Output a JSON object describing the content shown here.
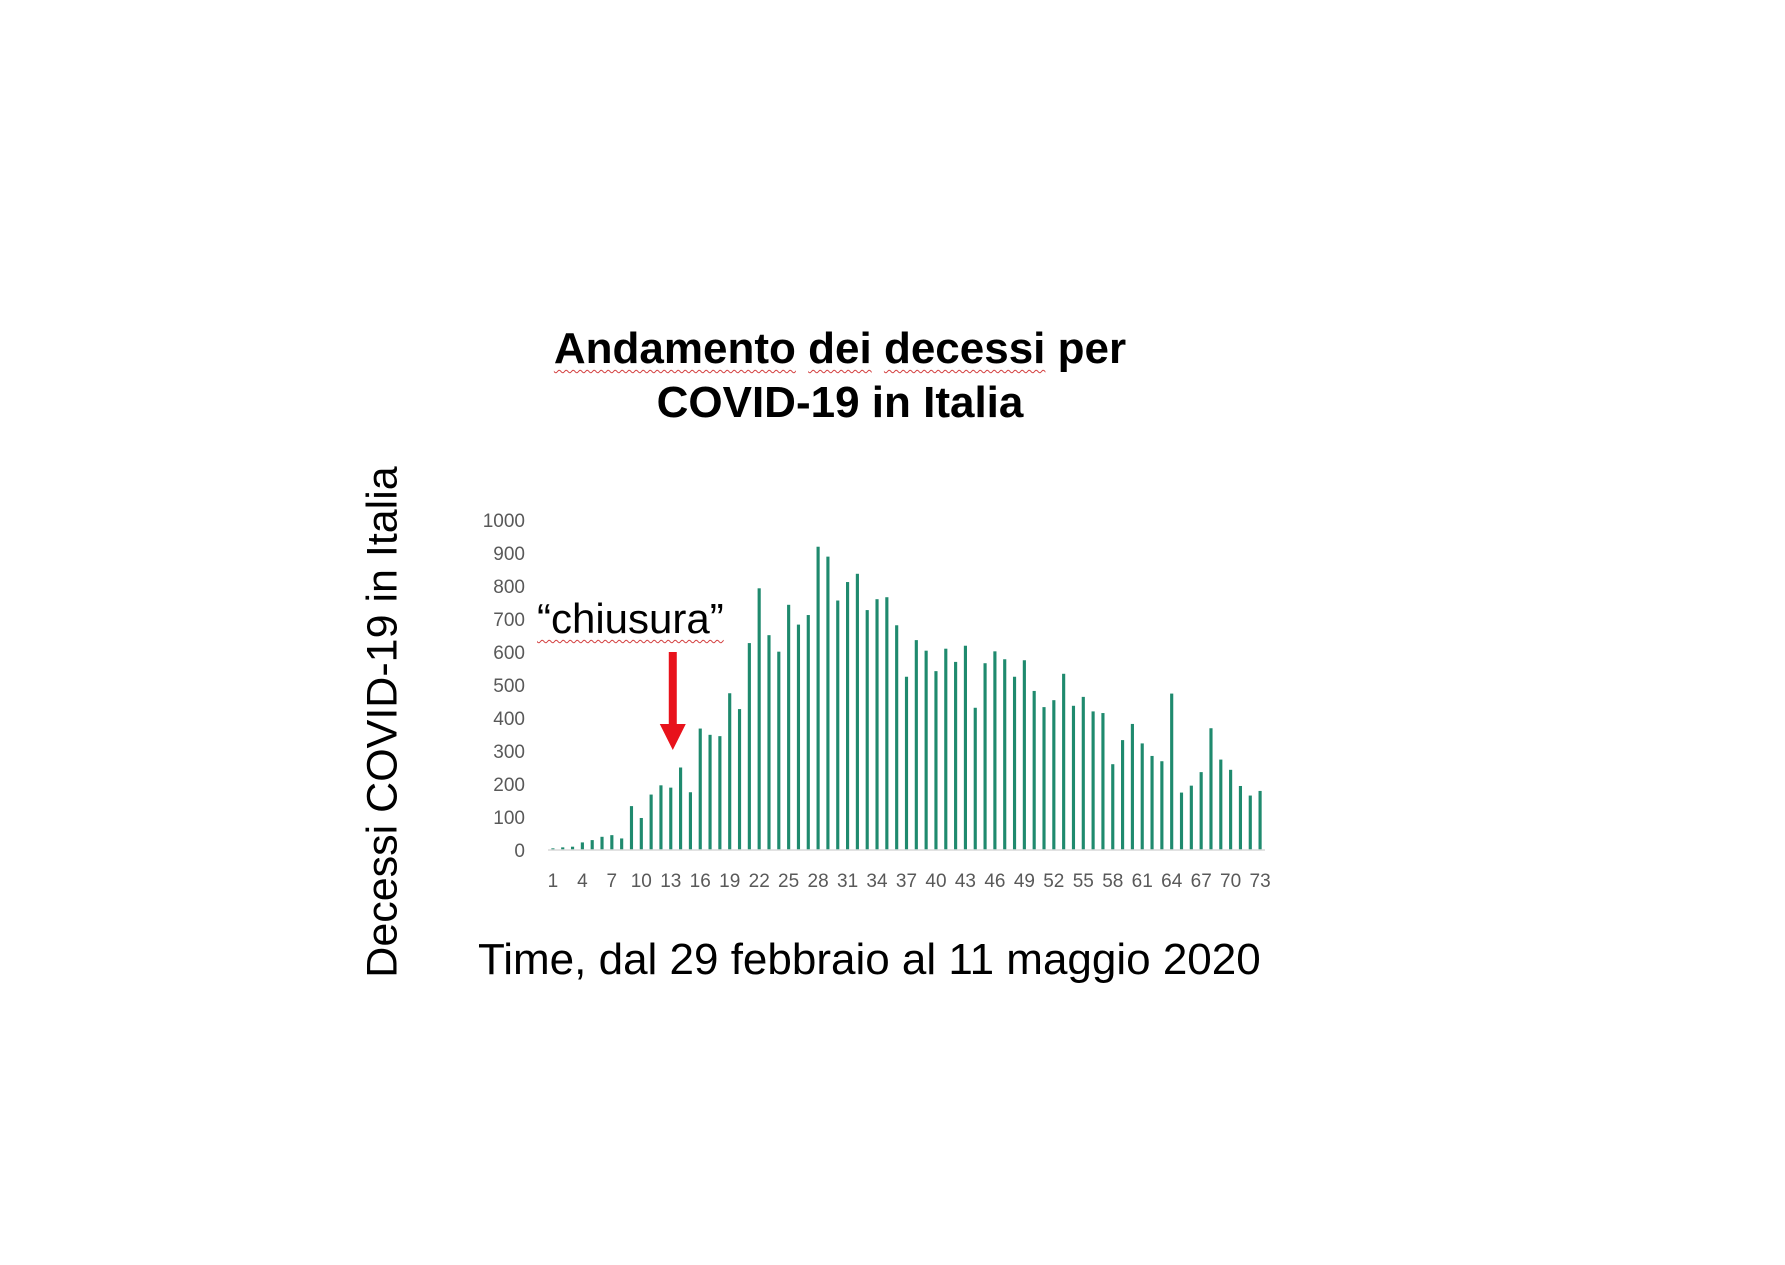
{
  "chart_data": {
    "type": "bar",
    "title_lines": [
      [
        "Andamento",
        " ",
        "dei",
        " ",
        "decessi",
        " per"
      ],
      [
        "COVID-19 in Italia"
      ]
    ],
    "ylabel": "Decessi COVID-19 in Italia",
    "xlabel": "Time, dal 29 febbraio al 11 maggio 2020",
    "ylim": [
      0,
      1000
    ],
    "yticks": [
      0,
      100,
      200,
      300,
      400,
      500,
      600,
      700,
      800,
      900,
      1000
    ],
    "xtick_labels": [
      "1",
      "4",
      "7",
      "10",
      "13",
      "16",
      "19",
      "22",
      "25",
      "28",
      "31",
      "34",
      "37",
      "40",
      "43",
      "46",
      "49",
      "52",
      "55",
      "58",
      "61",
      "64",
      "67",
      "70",
      "73"
    ],
    "categories": [
      1,
      2,
      3,
      4,
      5,
      6,
      7,
      8,
      9,
      10,
      11,
      12,
      13,
      14,
      15,
      16,
      17,
      18,
      19,
      20,
      21,
      22,
      23,
      24,
      25,
      26,
      27,
      28,
      29,
      30,
      31,
      32,
      33,
      34,
      35,
      36,
      37,
      38,
      39,
      40,
      41,
      42,
      43,
      44,
      45,
      46,
      47,
      48,
      49,
      50,
      51,
      52,
      53,
      54,
      55,
      56,
      57,
      58,
      59,
      60,
      61,
      62,
      63,
      64,
      65,
      66,
      67,
      68,
      69,
      70,
      71,
      72,
      73
    ],
    "values": [
      5,
      8,
      10,
      23,
      30,
      40,
      45,
      35,
      133,
      97,
      168,
      196,
      189,
      250,
      175,
      368,
      349,
      345,
      475,
      427,
      627,
      793,
      651,
      601,
      743,
      683,
      712,
      919,
      889,
      756,
      812,
      837,
      727,
      760,
      766,
      681,
      525,
      636,
      604,
      542,
      610,
      570,
      619,
      431,
      566,
      602,
      578,
      525,
      575,
      482,
      433,
      454,
      534,
      437,
      464,
      420,
      415,
      260,
      333,
      382,
      323,
      285,
      269,
      474,
      174,
      195,
      236,
      369,
      274,
      243,
      194,
      165,
      179
    ],
    "annotation": {
      "label": "“chiusura”",
      "at_category": 13
    },
    "grid": false,
    "legend": "none",
    "colors": {
      "bar": "#1f8a6e",
      "arrow": "#e8121b",
      "axis": "#d9d9d9",
      "tick_text": "#595959"
    }
  }
}
